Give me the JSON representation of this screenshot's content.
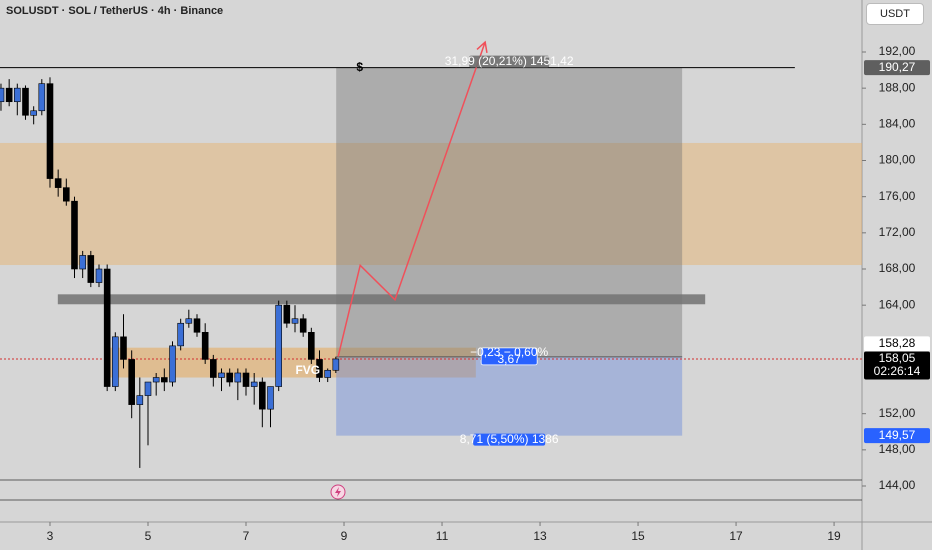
{
  "header": {
    "title": "SOLUSDT · SOL / TetherUS · 4h · Binance",
    "currency": "USDT"
  },
  "chart_data": {
    "type": "candlestick",
    "x": [
      2,
      2.167,
      2.333,
      2.5,
      2.667,
      2.833,
      3,
      3.167,
      3.333,
      3.5,
      3.667,
      3.833,
      4,
      4.167,
      4.333,
      4.5,
      4.667,
      4.833,
      5,
      5.167,
      5.333,
      5.5,
      5.667,
      5.833,
      6,
      6.167,
      6.333,
      6.5,
      6.667,
      6.833,
      7,
      7.167,
      7.333,
      7.5,
      7.667,
      7.833,
      8,
      8.167,
      8.333,
      8.5,
      8.667,
      8.833
    ],
    "open": [
      186.5,
      188,
      186.5,
      188,
      185,
      185.5,
      188.5,
      178,
      177,
      175.5,
      168,
      169.5,
      166.5,
      168,
      155,
      160.5,
      158,
      153,
      154,
      155.5,
      156,
      155.5,
      159.5,
      162,
      162.5,
      161,
      158,
      156,
      156.5,
      155.5,
      156.5,
      155,
      155.5,
      152.5,
      155,
      164,
      162,
      162.5,
      161,
      158,
      156,
      156.8
    ],
    "high": [
      188.5,
      189,
      188.5,
      188.3,
      186,
      189,
      189.2,
      179,
      178,
      176,
      170,
      170,
      168.5,
      168.5,
      161,
      163,
      159,
      156,
      155.5,
      156.5,
      157,
      160,
      162.5,
      163.5,
      163,
      162,
      158.5,
      157,
      157,
      157,
      157,
      156.5,
      156,
      155,
      164.5,
      164.5,
      164,
      163,
      161.5,
      159,
      157,
      158.3
    ],
    "low": [
      185.5,
      186,
      185,
      184.5,
      184,
      185,
      177,
      176,
      175,
      167,
      167,
      166,
      166,
      154.5,
      154.5,
      157,
      151.5,
      146,
      148.5,
      154,
      154.5,
      155,
      159,
      161.5,
      160.5,
      157.5,
      155,
      154.5,
      155,
      153.5,
      154,
      153,
      150.5,
      150.5,
      154.5,
      161.5,
      161,
      160.5,
      157.5,
      155.5,
      155.5,
      156.5
    ],
    "close": [
      188,
      186.5,
      188,
      185,
      185.5,
      188.5,
      178,
      177,
      175.5,
      168,
      169.5,
      166.5,
      168,
      155,
      160.5,
      158,
      153,
      154,
      155.5,
      156,
      155.5,
      159.5,
      162,
      162.5,
      161,
      158,
      156,
      156.5,
      155.5,
      156.5,
      155,
      155.5,
      152.5,
      155,
      164,
      162,
      162.5,
      161,
      158,
      156,
      156.8,
      158.05
    ],
    "up_color": "#3b6fd6",
    "down_color": "#000000",
    "xlim": [
      1.98,
      19.57
    ],
    "xticks": [
      3,
      5,
      7,
      9,
      11,
      13,
      15,
      17,
      19
    ],
    "ylim": [
      140.02,
      197.75
    ],
    "yticks": [
      {
        "value": 192,
        "label": "192,00"
      },
      {
        "value": 188,
        "label": "188,00"
      },
      {
        "value": 184,
        "label": "184,00"
      },
      {
        "value": 180,
        "label": "180,00"
      },
      {
        "value": 176,
        "label": "176,00"
      },
      {
        "value": 172,
        "label": "172,00"
      },
      {
        "value": 168,
        "label": "168,00"
      },
      {
        "value": 164,
        "label": "164,00"
      },
      {
        "value": 152,
        "label": "152,00"
      },
      {
        "value": 148,
        "label": "148,00"
      },
      {
        "value": 144,
        "label": "144,00"
      }
    ],
    "zones": [
      {
        "xrange": [
          1.98,
          19.57
        ],
        "yrange": [
          168.44,
          181.94
        ],
        "color": "rgba(232,178,105,0.45)"
      },
      {
        "xrange": [
          3.16,
          16.37
        ],
        "yrange": [
          164.1,
          165.2
        ],
        "color": "rgba(100,100,100,0.75)"
      },
      {
        "xrange": [
          4.18,
          11.69
        ],
        "yrange": [
          156,
          159.3
        ],
        "color": "rgba(232,170,90,0.55)",
        "label": "FVG"
      }
    ],
    "levels": [
      {
        "value": 190.27,
        "label": "190,27",
        "tag_color": "#5f5f5f",
        "text_color": "#ffffff",
        "line_color": "#000000",
        "line_end": 18.2,
        "marker": "$",
        "marker_x": 9.32
      },
      {
        "value": 158.28,
        "label": "158,28",
        "tag_color": "#ffffff",
        "text_color": "#000000"
      },
      {
        "value": 158.05,
        "label": "158,05",
        "sublabel": "02:26:14",
        "tag_color": "#000000",
        "text_color": "#ffffff",
        "line_color": "#d32f2f"
      },
      {
        "value": 149.57,
        "label": "149,57",
        "tag_color": "#2962ff",
        "text_color": "#ffffff"
      }
    ],
    "position": {
      "xrange": [
        8.84,
        15.9
      ],
      "entry": 158.28,
      "target": 190.27,
      "stop": 149.57,
      "target_label": "31,99 (20,21%) 1451,42",
      "entry_label": "−0,23 − 0,60%",
      "entry_sublabel": "3,67",
      "stop_label": "8,71 (5,50%) 1386"
    },
    "projection": {
      "x": [
        8.88,
        9.33,
        10.04,
        11.88
      ],
      "y": [
        158.3,
        168.4,
        164.6,
        193.1
      ],
      "color": "#f0505a"
    }
  }
}
